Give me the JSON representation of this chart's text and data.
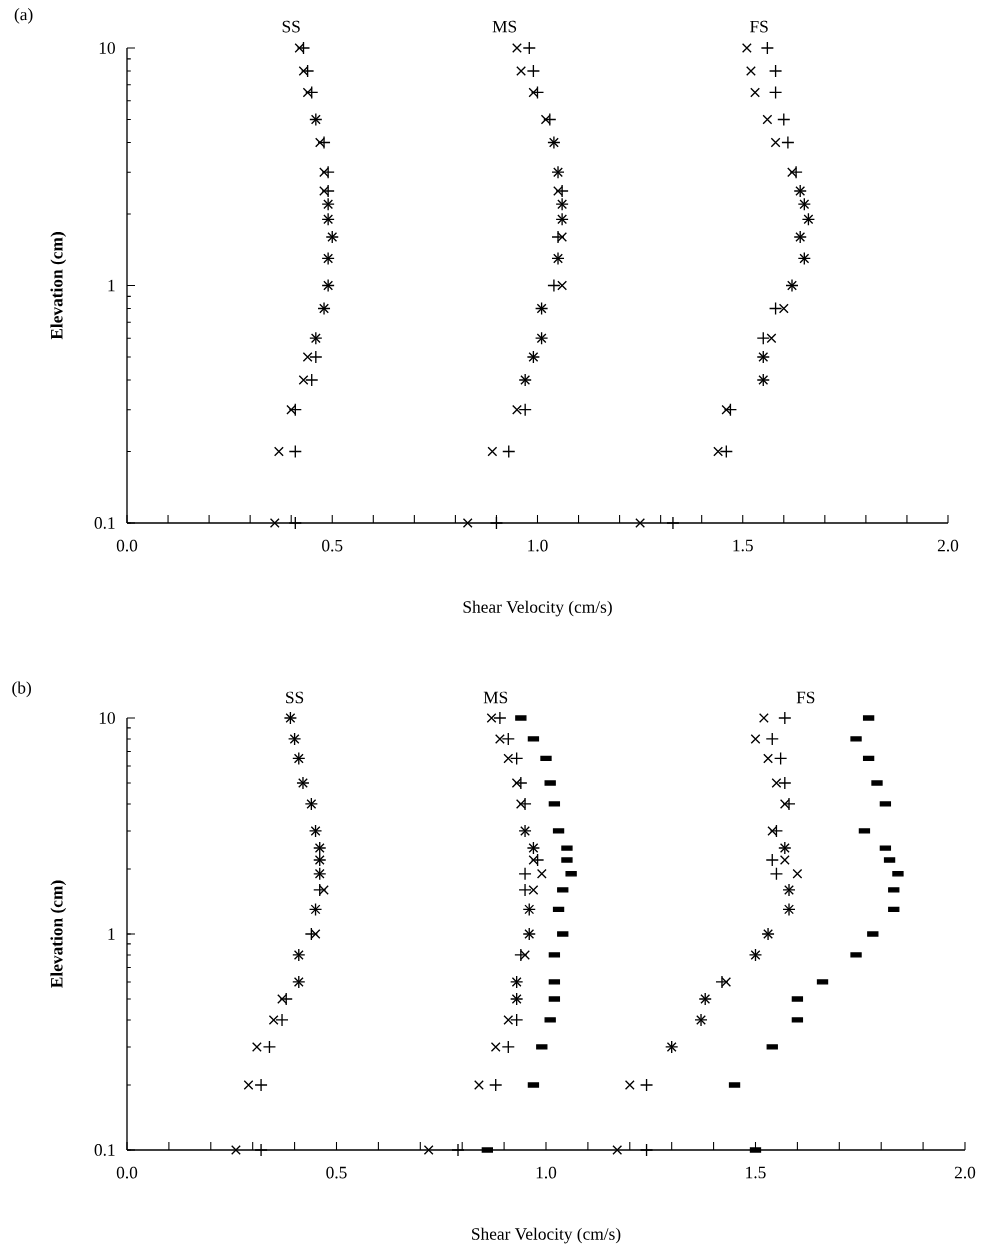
{
  "chart_data": [
    {
      "type": "scatter",
      "title": "(a)",
      "xlabel": "Shear Velocity (cm/s)",
      "ylabel": "Elevation (cm)",
      "log": "y",
      "xlim": [
        0,
        2
      ],
      "ylim": [
        0.1,
        10
      ],
      "xticks": [
        {
          "value": 0,
          "label": "0.0"
        },
        {
          "value": 0.1,
          "label": null
        },
        {
          "value": 0.2,
          "label": null
        },
        {
          "value": 0.3,
          "label": null
        },
        {
          "value": 0.4,
          "label": null
        },
        {
          "value": 0.5,
          "label": "0.5"
        },
        {
          "value": 0.6,
          "label": null
        },
        {
          "value": 0.7,
          "label": null
        },
        {
          "value": 0.8,
          "label": null
        },
        {
          "value": 0.9,
          "label": null
        },
        {
          "value": 1,
          "label": "1.0"
        },
        {
          "value": 1.1,
          "label": null
        },
        {
          "value": 1.2,
          "label": null
        },
        {
          "value": 1.3,
          "label": null
        },
        {
          "value": 1.4,
          "label": null
        },
        {
          "value": 1.5,
          "label": "1.5"
        },
        {
          "value": 1.6,
          "label": null
        },
        {
          "value": 1.7,
          "label": null
        },
        {
          "value": 1.8,
          "label": null
        },
        {
          "value": 1.9,
          "label": null
        },
        {
          "value": 2,
          "label": "2.0"
        }
      ],
      "yticks": [
        0.1,
        1,
        10
      ],
      "annotations": [
        "SS",
        "MS",
        "FS"
      ],
      "series": [
        {
          "marker": "cross",
          "color": "#000000",
          "x": [
            0.36,
            0.37,
            0.4,
            0.43,
            0.44,
            0.46,
            0.48,
            0.49,
            0.49,
            0.5,
            0.49,
            0.49,
            0.48,
            0.48,
            0.47,
            0.46,
            0.44,
            0.43,
            0.42,
            0.83,
            0.89,
            0.95,
            0.97,
            0.99,
            1.01,
            1.01,
            1.06,
            1.05,
            1.06,
            1.06,
            1.06,
            1.05,
            1.05,
            1.04,
            1.02,
            0.99,
            0.96,
            0.95,
            1.25,
            1.44,
            1.46,
            1.55,
            1.55,
            1.57,
            1.6,
            1.62,
            1.65,
            1.64,
            1.66,
            1.65,
            1.64,
            1.62,
            1.58,
            1.56,
            1.53,
            1.52,
            1.51
          ],
          "values": [
            0.1,
            0.2,
            0.3,
            0.4,
            0.5,
            0.6,
            0.8,
            1.0,
            1.3,
            1.6,
            1.9,
            2.2,
            2.5,
            3,
            4,
            5,
            6.5,
            8,
            10,
            0.1,
            0.2,
            0.3,
            0.4,
            0.5,
            0.6,
            0.8,
            1.0,
            1.3,
            1.6,
            1.9,
            2.2,
            2.5,
            3,
            4,
            5,
            6.5,
            8,
            10,
            0.1,
            0.2,
            0.3,
            0.4,
            0.5,
            0.6,
            0.8,
            1.0,
            1.3,
            1.6,
            1.9,
            2.2,
            2.5,
            3,
            4,
            5,
            6.5,
            8,
            10
          ]
        },
        {
          "marker": "plus",
          "color": "#000000",
          "x": [
            0.41,
            0.41,
            0.41,
            0.45,
            0.46,
            0.46,
            0.48,
            0.49,
            0.49,
            0.5,
            0.49,
            0.49,
            0.49,
            0.49,
            0.48,
            0.46,
            0.45,
            0.44,
            0.43,
            0.9,
            0.93,
            0.97,
            0.97,
            0.99,
            1.01,
            1.01,
            1.04,
            1.05,
            1.05,
            1.06,
            1.06,
            1.06,
            1.05,
            1.04,
            1.03,
            1.0,
            0.99,
            0.98,
            1.33,
            1.46,
            1.47,
            1.55,
            1.55,
            1.55,
            1.58,
            1.62,
            1.65,
            1.64,
            1.66,
            1.65,
            1.64,
            1.63,
            1.61,
            1.6,
            1.58,
            1.58,
            1.56
          ],
          "values": [
            0.1,
            0.2,
            0.3,
            0.4,
            0.5,
            0.6,
            0.8,
            1.0,
            1.3,
            1.6,
            1.9,
            2.2,
            2.5,
            3,
            4,
            5,
            6.5,
            8,
            10,
            0.1,
            0.2,
            0.3,
            0.4,
            0.5,
            0.6,
            0.8,
            1.0,
            1.3,
            1.6,
            1.9,
            2.2,
            2.5,
            3,
            4,
            5,
            6.5,
            8,
            10,
            0.1,
            0.2,
            0.3,
            0.4,
            0.5,
            0.6,
            0.8,
            1.0,
            1.3,
            1.6,
            1.9,
            2.2,
            2.5,
            3,
            4,
            5,
            6.5,
            8,
            10
          ]
        }
      ]
    },
    {
      "type": "scatter",
      "title": "(b)",
      "xlabel": "Shear Velocity (cm/s)",
      "ylabel": "Elevation (cm)",
      "log": "y",
      "xlim": [
        0,
        2
      ],
      "ylim": [
        0.1,
        10
      ],
      "xticks": [
        {
          "value": 0,
          "label": "0.0"
        },
        {
          "value": 0.1,
          "label": null
        },
        {
          "value": 0.2,
          "label": null
        },
        {
          "value": 0.3,
          "label": null
        },
        {
          "value": 0.4,
          "label": null
        },
        {
          "value": 0.5,
          "label": "0.5"
        },
        {
          "value": 0.6,
          "label": null
        },
        {
          "value": 0.7,
          "label": null
        },
        {
          "value": 0.8,
          "label": null
        },
        {
          "value": 0.9,
          "label": null
        },
        {
          "value": 1,
          "label": "1.0"
        },
        {
          "value": 1.1,
          "label": null
        },
        {
          "value": 1.2,
          "label": null
        },
        {
          "value": 1.3,
          "label": null
        },
        {
          "value": 1.4,
          "label": null
        },
        {
          "value": 1.5,
          "label": "1.5"
        },
        {
          "value": 1.6,
          "label": null
        },
        {
          "value": 1.7,
          "label": null
        },
        {
          "value": 1.8,
          "label": null
        },
        {
          "value": 1.9,
          "label": null
        },
        {
          "value": 2,
          "label": "2.0"
        }
      ],
      "yticks": [
        0.1,
        1,
        10
      ],
      "annotations": [
        "SS",
        "MS",
        "FS"
      ],
      "series": [
        {
          "marker": "cross",
          "color": "#000000",
          "x": [
            0.26,
            0.29,
            0.31,
            0.35,
            0.37,
            0.41,
            0.41,
            0.45,
            0.45,
            0.47,
            0.46,
            0.46,
            0.46,
            0.45,
            0.44,
            0.42,
            0.41,
            0.4,
            0.39,
            0.72,
            0.84,
            0.88,
            0.91,
            0.93,
            0.93,
            0.95,
            0.96,
            0.96,
            0.97,
            0.99,
            0.97,
            0.97,
            0.95,
            0.94,
            0.93,
            0.91,
            0.89,
            0.87,
            1.17,
            1.2,
            1.3,
            1.37,
            1.38,
            1.43,
            1.5,
            1.53,
            1.58,
            1.58,
            1.6,
            1.57,
            1.57,
            1.54,
            1.57,
            1.55,
            1.53,
            1.5,
            1.52
          ],
          "values": [
            0.1,
            0.2,
            0.3,
            0.4,
            0.5,
            0.6,
            0.8,
            1.0,
            1.3,
            1.6,
            1.9,
            2.2,
            2.5,
            3,
            4,
            5,
            6.5,
            8,
            10,
            0.1,
            0.2,
            0.3,
            0.4,
            0.5,
            0.6,
            0.8,
            1.0,
            1.3,
            1.6,
            1.9,
            2.2,
            2.5,
            3,
            4,
            5,
            6.5,
            8,
            10,
            0.1,
            0.2,
            0.3,
            0.4,
            0.5,
            0.6,
            0.8,
            1.0,
            1.3,
            1.6,
            1.9,
            2.2,
            2.5,
            3,
            4,
            5,
            6.5,
            8,
            10
          ]
        },
        {
          "marker": "plus",
          "color": "#000000",
          "x": [
            0.32,
            0.32,
            0.34,
            0.37,
            0.38,
            0.41,
            0.41,
            0.44,
            0.45,
            0.46,
            0.46,
            0.46,
            0.46,
            0.45,
            0.44,
            0.42,
            0.41,
            0.4,
            0.39,
            0.79,
            0.88,
            0.91,
            0.93,
            0.93,
            0.93,
            0.94,
            0.96,
            0.96,
            0.95,
            0.95,
            0.98,
            0.97,
            0.95,
            0.95,
            0.94,
            0.93,
            0.91,
            0.89,
            1.24,
            1.24,
            1.3,
            1.37,
            1.38,
            1.42,
            1.5,
            1.53,
            1.58,
            1.58,
            1.55,
            1.54,
            1.57,
            1.55,
            1.58,
            1.57,
            1.56,
            1.54,
            1.57
          ],
          "values": [
            0.1,
            0.2,
            0.3,
            0.4,
            0.5,
            0.6,
            0.8,
            1.0,
            1.3,
            1.6,
            1.9,
            2.2,
            2.5,
            3,
            4,
            5,
            6.5,
            8,
            10,
            0.1,
            0.2,
            0.3,
            0.4,
            0.5,
            0.6,
            0.8,
            1.0,
            1.3,
            1.6,
            1.9,
            2.2,
            2.5,
            3,
            4,
            5,
            6.5,
            8,
            10,
            0.1,
            0.2,
            0.3,
            0.4,
            0.5,
            0.6,
            0.8,
            1.0,
            1.3,
            1.6,
            1.9,
            2.2,
            2.5,
            3,
            4,
            5,
            6.5,
            8,
            10
          ]
        },
        {
          "marker": "square",
          "color": "#000000",
          "x": [
            0.86,
            0.97,
            0.99,
            1.01,
            1.02,
            1.02,
            1.02,
            1.04,
            1.03,
            1.04,
            1.06,
            1.05,
            1.05,
            1.03,
            1.02,
            1.01,
            1.0,
            0.97,
            0.94,
            1.5,
            1.45,
            1.54,
            1.6,
            1.6,
            1.66,
            1.74,
            1.78,
            1.83,
            1.83,
            1.84,
            1.82,
            1.81,
            1.76,
            1.81,
            1.79,
            1.77,
            1.74,
            1.77
          ],
          "values": [
            0.1,
            0.2,
            0.3,
            0.4,
            0.5,
            0.6,
            0.8,
            1.0,
            1.3,
            1.6,
            1.9,
            2.2,
            2.5,
            3,
            4,
            5,
            6.5,
            8,
            10,
            0.1,
            0.2,
            0.3,
            0.4,
            0.5,
            0.6,
            0.8,
            1.0,
            1.3,
            1.6,
            1.9,
            2.2,
            2.5,
            3,
            4,
            5,
            6.5,
            8,
            10
          ]
        }
      ]
    }
  ]
}
